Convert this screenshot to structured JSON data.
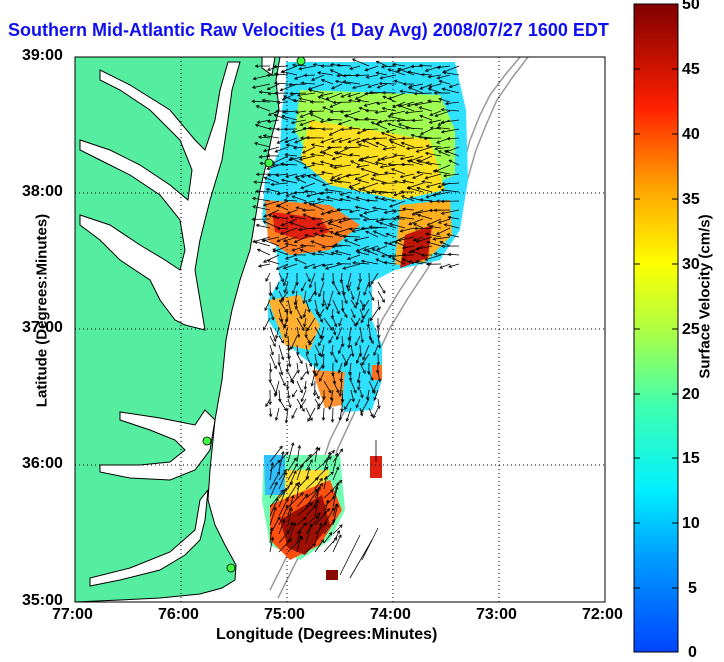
{
  "title": "Southern Mid-Atlantic Raw Velocities (1 Day Avg) 2008/07/27 1600 EDT",
  "map": {
    "x_ticks": [
      "77:00",
      "76:00",
      "75:00",
      "74:00",
      "73:00",
      "72:00"
    ],
    "y_ticks": [
      "39:00",
      "38:00",
      "37:00",
      "36:00",
      "35:00"
    ],
    "x_label": "Longitude (Degrees:Minutes)",
    "y_label": "Latitude (Degrees:Minutes)",
    "lon_range": [
      -77,
      -72
    ],
    "lat_range": [
      35,
      39
    ],
    "land_color": "#55eea0",
    "grid": true
  },
  "colorbar": {
    "label": "Surface Velocity (cm/s)",
    "ticks": [
      "50",
      "45",
      "40",
      "35",
      "30",
      "25",
      "20",
      "15",
      "10",
      "5",
      "0"
    ],
    "range": [
      0,
      50
    ]
  }
}
